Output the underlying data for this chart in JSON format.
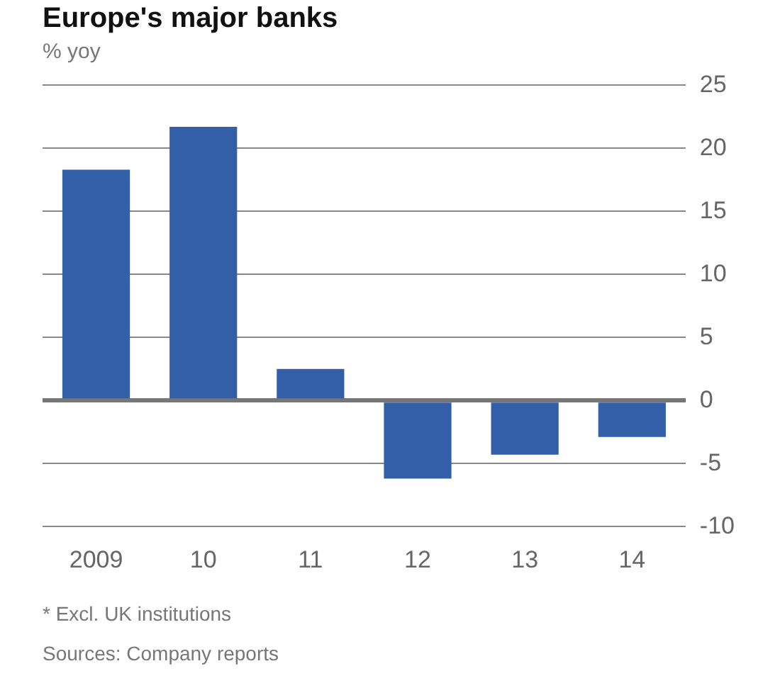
{
  "chart_data": {
    "type": "bar",
    "title": "Europe's major banks",
    "ylabel": "% yoy",
    "categories": [
      "2009",
      "10",
      "11",
      "12",
      "13",
      "14"
    ],
    "values": [
      18.3,
      21.7,
      2.5,
      -6.2,
      -4.3,
      -2.9
    ],
    "color": "#335fa9",
    "ylim": [
      -10,
      25
    ],
    "yticks": [
      -10,
      -5,
      0,
      5,
      10,
      15,
      20,
      25
    ],
    "grid": "y",
    "legend": false,
    "annotations": [
      "* Excl. UK institutions",
      "Sources: Company reports"
    ]
  }
}
